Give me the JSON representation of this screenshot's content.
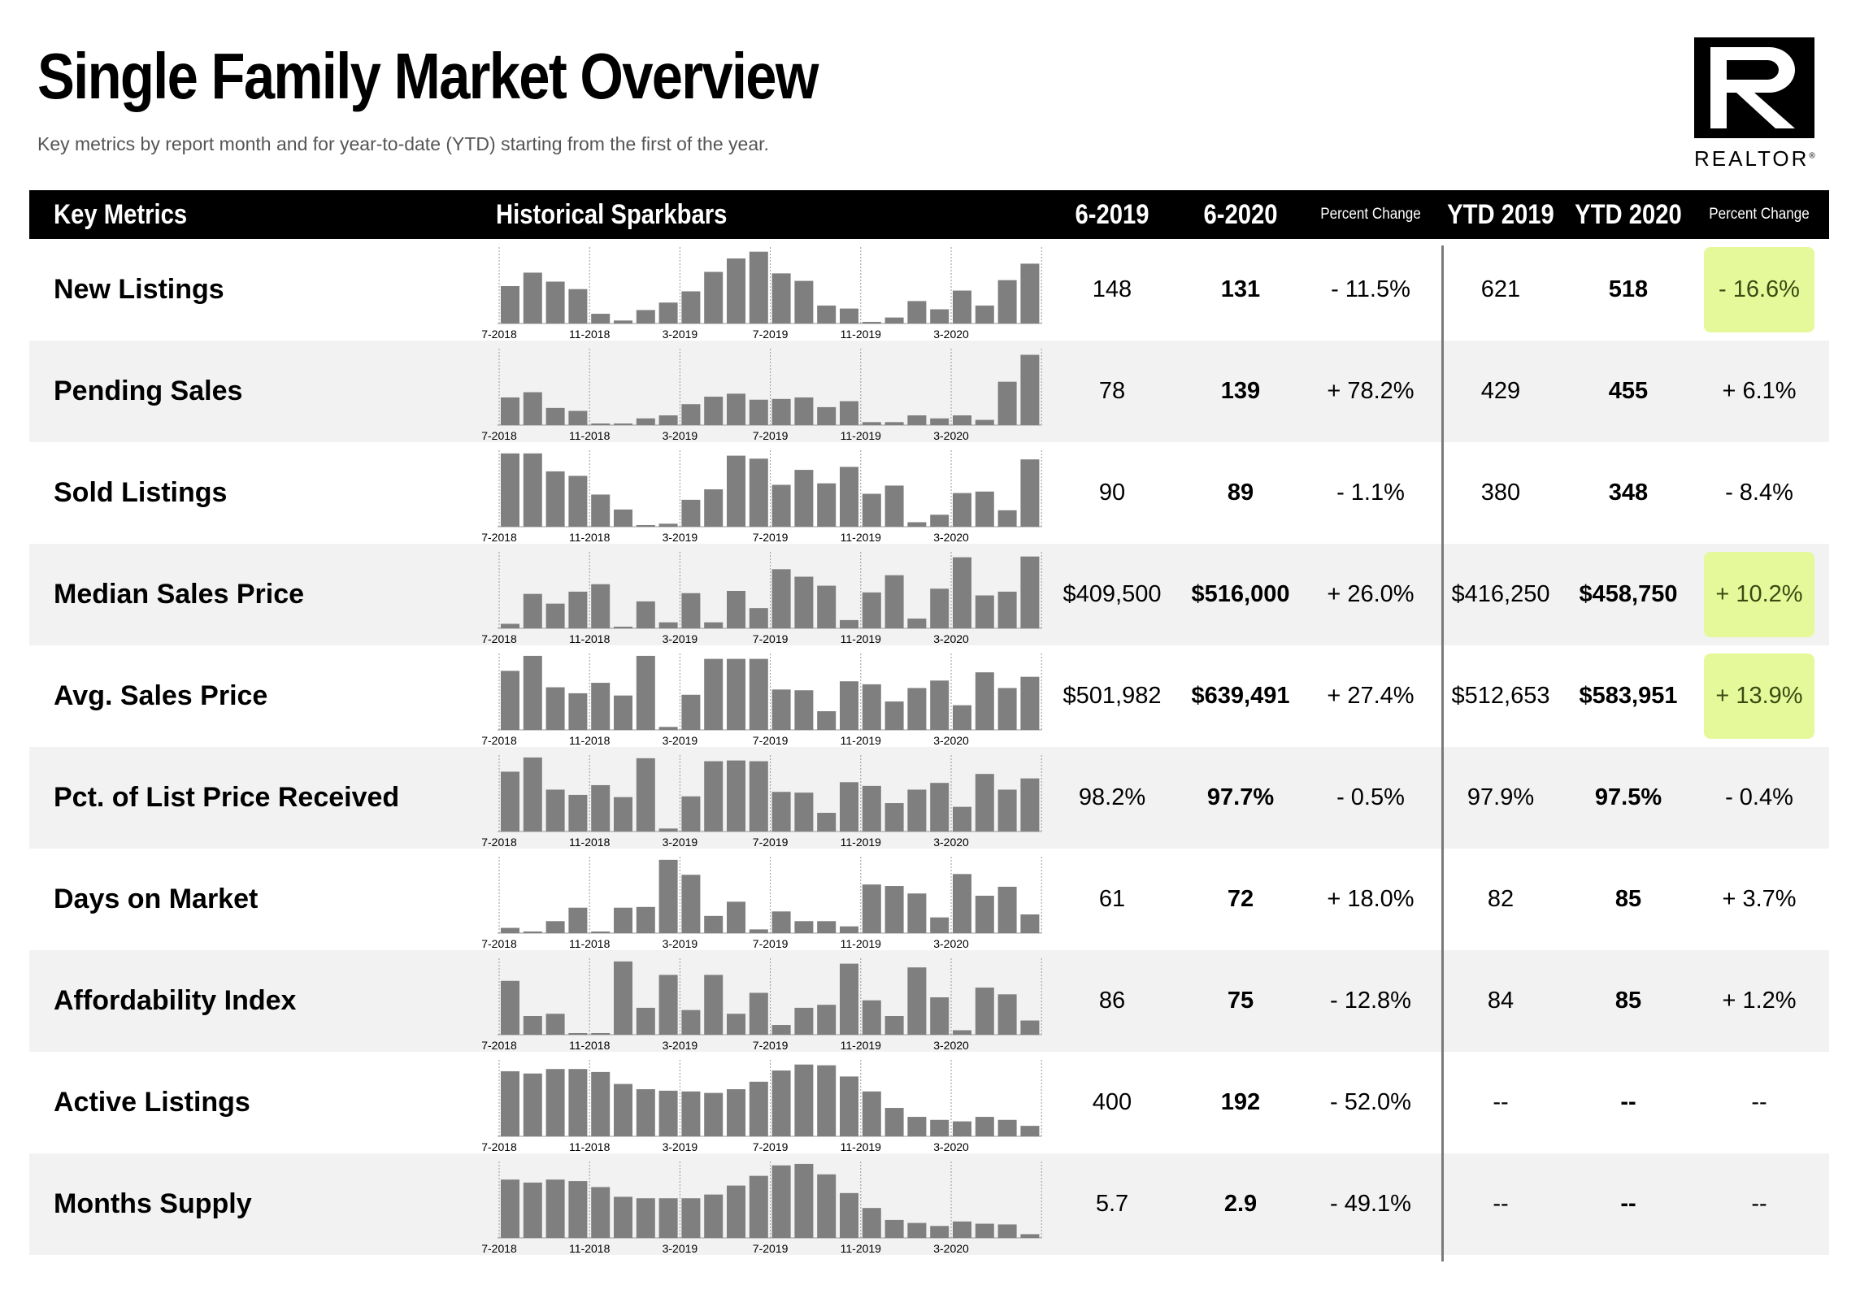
{
  "title": "Single Family Market Overview",
  "subtitle": "Key metrics by report month and for year-to-date (YTD) starting from the first of the year.",
  "logo": {
    "text": "REALTOR",
    "mark": "®"
  },
  "header": {
    "key_metrics": "Key Metrics",
    "sparkbars": "Historical Sparkbars",
    "col_6_2019": "6-2019",
    "col_6_2020": "6-2020",
    "pct_change": "Percent Change",
    "ytd_2019": "YTD 2019",
    "ytd_2020": "YTD 2020",
    "ytd_pct_change": "Percent Change"
  },
  "spark_labels": [
    "7-2018",
    "11-2018",
    "3-2019",
    "7-2019",
    "11-2019",
    "3-2020"
  ],
  "highlight_color": "#e6f99a",
  "rows": [
    {
      "metric": "New Listings",
      "m2019": "148",
      "m2020": "131",
      "pct": "- 11.5%",
      "ytd2019": "621",
      "ytd2020": "518",
      "ytd_pct": "- 16.6%",
      "highlight": true,
      "bars": [
        0.5,
        0.68,
        0.56,
        0.46,
        0.13,
        0.04,
        0.18,
        0.28,
        0.43,
        0.69,
        0.87,
        0.96,
        0.67,
        0.57,
        0.24,
        0.2,
        0.02,
        0.08,
        0.3,
        0.19,
        0.44,
        0.24,
        0.58,
        0.8
      ]
    },
    {
      "metric": "Pending Sales",
      "m2019": "78",
      "m2020": "139",
      "pct": "+ 78.2%",
      "ytd2019": "429",
      "ytd2020": "455",
      "ytd_pct": "+ 6.1%",
      "highlight": false,
      "bars": [
        0.37,
        0.44,
        0.23,
        0.19,
        0.02,
        0.02,
        0.09,
        0.13,
        0.28,
        0.38,
        0.42,
        0.34,
        0.35,
        0.37,
        0.24,
        0.32,
        0.04,
        0.04,
        0.13,
        0.09,
        0.13,
        0.07,
        0.58,
        0.94
      ]
    },
    {
      "metric": "Sold Listings",
      "m2019": "90",
      "m2020": "89",
      "pct": "- 1.1%",
      "ytd2019": "380",
      "ytd2020": "348",
      "ytd_pct": "- 8.4%",
      "highlight": false,
      "bars": [
        0.98,
        0.98,
        0.74,
        0.68,
        0.43,
        0.23,
        0.02,
        0.04,
        0.36,
        0.5,
        0.95,
        0.91,
        0.56,
        0.76,
        0.58,
        0.8,
        0.44,
        0.55,
        0.06,
        0.16,
        0.45,
        0.47,
        0.22,
        0.9
      ]
    },
    {
      "metric": "Median Sales Price",
      "m2019": "$409,500",
      "m2020": "$516,000",
      "pct": "+ 26.0%",
      "ytd2019": "$416,250",
      "ytd2020": "$458,750",
      "ytd_pct": "+ 10.2%",
      "highlight": true,
      "bars": [
        0.06,
        0.46,
        0.33,
        0.49,
        0.59,
        0.02,
        0.36,
        0.08,
        0.47,
        0.08,
        0.5,
        0.27,
        0.79,
        0.69,
        0.57,
        0.11,
        0.48,
        0.71,
        0.13,
        0.53,
        0.95,
        0.44,
        0.49,
        0.96
      ]
    },
    {
      "metric": "Avg. Sales Price",
      "m2019": "$501,982",
      "m2020": "$639,491",
      "pct": "+ 27.4%",
      "ytd2019": "$512,653",
      "ytd2020": "$583,951",
      "ytd_pct": "+ 13.9%",
      "highlight": true,
      "bars": [
        0.79,
        0.99,
        0.57,
        0.49,
        0.63,
        0.46,
        0.99,
        0.04,
        0.47,
        0.95,
        0.95,
        0.95,
        0.54,
        0.53,
        0.25,
        0.65,
        0.61,
        0.38,
        0.56,
        0.66,
        0.33,
        0.77,
        0.56,
        0.71
      ]
    },
    {
      "metric": "Pct. of List Price Received",
      "m2019": "98.2%",
      "m2020": "97.7%",
      "pct": "- 0.5%",
      "ytd2019": "97.9%",
      "ytd2020": "97.5%",
      "ytd_pct": "- 0.4%",
      "highlight": false,
      "bars": [
        0.8,
        0.99,
        0.56,
        0.49,
        0.62,
        0.46,
        0.98,
        0.04,
        0.47,
        0.94,
        0.95,
        0.94,
        0.53,
        0.52,
        0.25,
        0.66,
        0.61,
        0.38,
        0.56,
        0.65,
        0.33,
        0.77,
        0.56,
        0.71
      ]
    },
    {
      "metric": "Days on Market",
      "m2019": "61",
      "m2020": "72",
      "pct": "+ 18.0%",
      "ytd2019": "82",
      "ytd2020": "85",
      "ytd_pct": "+ 3.7%",
      "highlight": false,
      "bars": [
        0.07,
        0.02,
        0.16,
        0.34,
        0.02,
        0.34,
        0.35,
        0.98,
        0.78,
        0.23,
        0.42,
        0.05,
        0.29,
        0.16,
        0.16,
        0.09,
        0.65,
        0.63,
        0.53,
        0.21,
        0.79,
        0.5,
        0.62,
        0.25
      ]
    },
    {
      "metric": "Affordability Index",
      "m2019": "86",
      "m2020": "75",
      "pct": "- 12.8%",
      "ytd2019": "84",
      "ytd2020": "85",
      "ytd_pct": "+ 1.2%",
      "highlight": false,
      "bars": [
        0.72,
        0.25,
        0.28,
        0.02,
        0.02,
        0.98,
        0.36,
        0.8,
        0.33,
        0.8,
        0.28,
        0.56,
        0.13,
        0.36,
        0.4,
        0.95,
        0.46,
        0.25,
        0.9,
        0.5,
        0.06,
        0.63,
        0.54,
        0.19
      ]
    },
    {
      "metric": "Active Listings",
      "m2019": "400",
      "m2020": "192",
      "pct": "- 52.0%",
      "ytd2019": "--",
      "ytd2020": "--",
      "ytd_pct": "--",
      "highlight": false,
      "bars": [
        0.87,
        0.84,
        0.9,
        0.9,
        0.86,
        0.7,
        0.63,
        0.61,
        0.6,
        0.58,
        0.63,
        0.73,
        0.88,
        0.96,
        0.95,
        0.8,
        0.6,
        0.38,
        0.26,
        0.22,
        0.2,
        0.26,
        0.22,
        0.14
      ]
    },
    {
      "metric": "Months Supply",
      "m2019": "5.7",
      "m2020": "2.9",
      "pct": "- 49.1%",
      "ytd2019": "--",
      "ytd2020": "--",
      "ytd_pct": "--",
      "highlight": false,
      "bars": [
        0.78,
        0.74,
        0.78,
        0.76,
        0.68,
        0.55,
        0.53,
        0.53,
        0.53,
        0.58,
        0.7,
        0.83,
        0.97,
        0.99,
        0.85,
        0.6,
        0.4,
        0.24,
        0.2,
        0.16,
        0.22,
        0.19,
        0.18,
        0.05
      ]
    }
  ]
}
